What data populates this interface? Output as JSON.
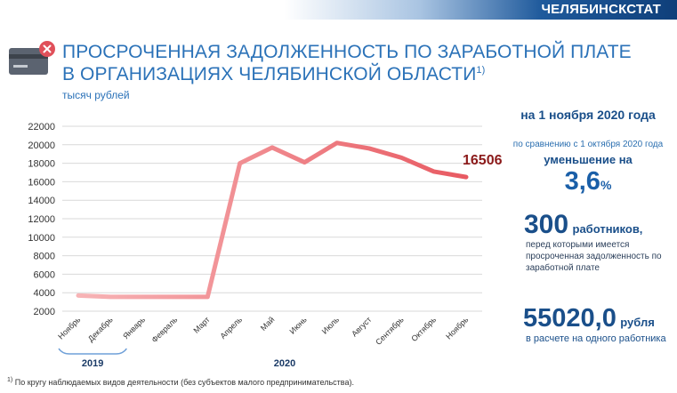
{
  "header": {
    "org_name": "ЧЕЛЯБИНСКСТАТ"
  },
  "title": {
    "line1": "ПРОСРОЧЕННАЯ ЗАДОЛЖЕННОСТЬ ПО ЗАРАБОТНОЙ ПЛАТЕ",
    "line2": "В ОРГАНИЗАЦИЯХ ЧЕЛЯБИНСКОЙ ОБЛАСТИ",
    "footnote_mark": "1)"
  },
  "unit": "тысяч рублей",
  "icon": {
    "name": "credit-card-declined-icon",
    "card_color": "#5b6370",
    "badge_color": "#e0505a"
  },
  "colors": {
    "line_start": "#f7b4b6",
    "line_end": "#e85a62",
    "last_label": "#8b1a1a",
    "accent": "#2b72b8"
  },
  "chart_data": {
    "type": "line",
    "title": "ПРОСРОЧЕННАЯ ЗАДОЛЖЕННОСТЬ ПО ЗАРАБОТНОЙ ПЛАТЕ В ОРГАНИЗАЦИЯХ ЧЕЛЯБИНСКОЙ ОБЛАСТИ",
    "ylabel": "тысяч рублей",
    "categories": [
      "Ноябрь",
      "Декабрь",
      "Январь",
      "Февраль",
      "Март",
      "Апрель",
      "Май",
      "Июнь",
      "Июль",
      "Август",
      "Сентябрь",
      "Октябрь",
      "Ноябрь"
    ],
    "values": [
      3700,
      3550,
      3550,
      3550,
      3550,
      18000,
      19700,
      18100,
      20200,
      19600,
      18600,
      17100,
      16506
    ],
    "ylim": [
      2000,
      22000
    ],
    "yticks": [
      2000,
      4000,
      6000,
      8000,
      10000,
      12000,
      14000,
      16000,
      18000,
      20000,
      22000
    ],
    "grid": true,
    "last_value_label": "16506",
    "year_groups": [
      {
        "label": "2019",
        "from": 0,
        "to": 1
      },
      {
        "label": "2020",
        "from": 2,
        "to": 12
      }
    ]
  },
  "summary": {
    "date": "на 1 ноября 2020 года",
    "compare": "по сравнению с 1 октября 2020 года",
    "decrease": "уменьшение на",
    "percent_value": "3,6",
    "percent_sign": "%",
    "workers_count": "300",
    "workers_label": "работников,",
    "workers_desc": "перед которыми имеется просроченная задолженность по заработной плате",
    "per_worker_value": "55020,0",
    "per_worker_unit": "рубля",
    "per_worker_desc": "в расчете на одного работника"
  },
  "footnote": {
    "mark": "1)",
    "text": "По кругу наблюдаемых видов деятельности (без субъектов  малого предпринимательства)."
  }
}
